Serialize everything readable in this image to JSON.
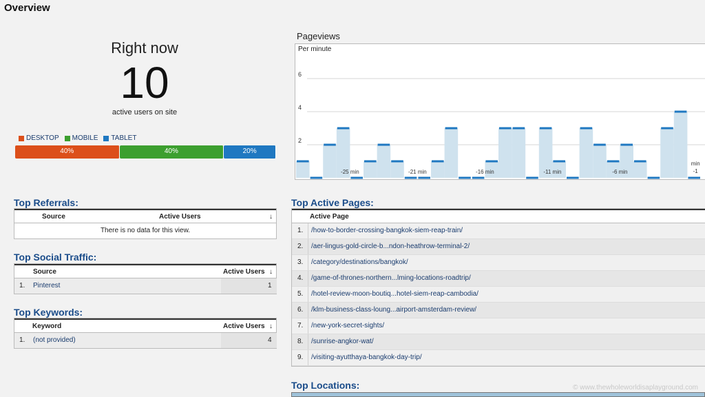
{
  "page": {
    "title": "Overview"
  },
  "right_now": {
    "title": "Right now",
    "count": "10",
    "subtitle": "active users on site",
    "legend": [
      {
        "label": "DESKTOP",
        "color": "#dc4f1a"
      },
      {
        "label": "MOBILE",
        "color": "#3c9f2f"
      },
      {
        "label": "TABLET",
        "color": "#1f78c1"
      }
    ],
    "segments": [
      {
        "label": "40%",
        "value": 40,
        "color": "#dc4f1a"
      },
      {
        "label": "40%",
        "value": 40,
        "color": "#3c9f2f"
      },
      {
        "label": "20%",
        "value": 20,
        "color": "#1f78c1"
      }
    ]
  },
  "pageviews": {
    "title": "Pageviews",
    "subtitle": "Per minute"
  },
  "chart_data": {
    "type": "bar",
    "title": "Pageviews",
    "ylabel": "Per minute",
    "ylim": [
      0,
      8
    ],
    "yticks": [
      2,
      4,
      6
    ],
    "xtick_labels": [
      "-25 min",
      "-21 min",
      "-16 min",
      "-11 min",
      "-6 min",
      "min -1"
    ],
    "xtick_positions": [
      4,
      9,
      14,
      19,
      24,
      29.5
    ],
    "values": [
      1,
      0,
      2,
      3,
      0,
      1,
      2,
      1,
      0,
      0,
      1,
      3,
      0,
      0,
      1,
      3,
      3,
      0,
      3,
      1,
      0,
      3,
      2,
      1,
      2,
      1,
      0,
      3,
      4,
      0
    ],
    "bar_color": "#cfe2ee",
    "line_color": "#1f78c1"
  },
  "referrals": {
    "title": "Top Referrals:",
    "columns": [
      "Source",
      "Active Users"
    ],
    "empty": "There is no data for this view."
  },
  "social": {
    "title": "Top Social Traffic:",
    "columns": [
      "Source",
      "Active Users"
    ],
    "rows": [
      {
        "num": "1.",
        "source": "Pinterest",
        "users": "1"
      }
    ]
  },
  "keywords": {
    "title": "Top Keywords:",
    "columns": [
      "Keyword",
      "Active Users"
    ],
    "rows": [
      {
        "num": "1.",
        "keyword": "(not provided)",
        "users": "4"
      }
    ]
  },
  "active_pages": {
    "title": "Top Active Pages:",
    "column": "Active Page",
    "rows": [
      {
        "num": "1.",
        "page": "/how-to-border-crossing-bangkok-siem-reap-train/"
      },
      {
        "num": "2.",
        "page": "/aer-lingus-gold-circle-b...ndon-heathrow-terminal-2/"
      },
      {
        "num": "3.",
        "page": "/category/destinations/bangkok/"
      },
      {
        "num": "4.",
        "page": "/game-of-thrones-northern...lming-locations-roadtrip/"
      },
      {
        "num": "5.",
        "page": "/hotel-review-moon-boutiq...hotel-siem-reap-cambodia/"
      },
      {
        "num": "6.",
        "page": "/klm-business-class-loung...airport-amsterdam-review/"
      },
      {
        "num": "7.",
        "page": "/new-york-secret-sights/"
      },
      {
        "num": "8.",
        "page": "/sunrise-angkor-wat/"
      },
      {
        "num": "9.",
        "page": "/visiting-ayutthaya-bangkok-day-trip/"
      }
    ]
  },
  "locations": {
    "title": "Top Locations:"
  },
  "sort_icon": "↓",
  "watermark": "© www.thewholeworldisaplayground.com"
}
